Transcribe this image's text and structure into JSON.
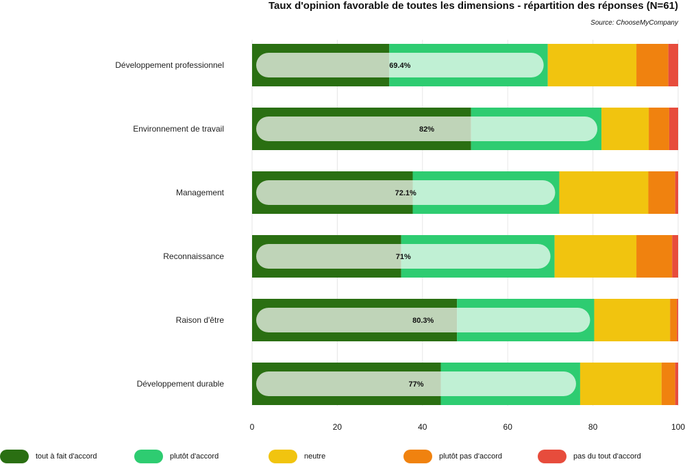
{
  "chart_data": {
    "type": "bar",
    "orientation": "horizontal",
    "stacked": true,
    "title": "Taux d'opinion favorable de toutes les dimensions - répartition des réponses (N=61)",
    "source": "Source: ChooseMyCompany",
    "categories": [
      "Développement professionnel",
      "Environnement de travail",
      "Management",
      "Reconnaissance",
      "Raison d'être",
      "Développement durable"
    ],
    "series": [
      {
        "name": "tout à fait d'accord",
        "color": "#2a6f12",
        "values": [
          32.2,
          51.4,
          37.7,
          35.0,
          48.1,
          44.3
        ]
      },
      {
        "name": "plutôt d'accord",
        "color": "#2ecc71",
        "values": [
          37.2,
          30.6,
          34.4,
          36.0,
          32.2,
          32.7
        ]
      },
      {
        "name": "neutre",
        "color": "#f1c40f",
        "values": [
          20.8,
          11.1,
          20.9,
          19.2,
          17.8,
          19.1
        ]
      },
      {
        "name": "plutôt pas d'accord",
        "color": "#f0820f",
        "values": [
          7.5,
          4.8,
          6.3,
          8.4,
          1.6,
          3.2
        ]
      },
      {
        "name": "pas du tout d'accord",
        "color": "#e74c3c",
        "values": [
          2.3,
          2.1,
          0.7,
          1.4,
          0.3,
          0.7
        ]
      }
    ],
    "favorable_labels": [
      "69.4%",
      "82%",
      "72.1%",
      "71%",
      "80.3%",
      "77%"
    ],
    "favorable_values": [
      69.4,
      82,
      72.1,
      71,
      80.3,
      77
    ],
    "xlim": [
      0,
      100
    ],
    "xticks": [
      "0",
      "20",
      "40",
      "60",
      "80",
      "100"
    ],
    "grid": true,
    "legend_position": "bottom"
  }
}
